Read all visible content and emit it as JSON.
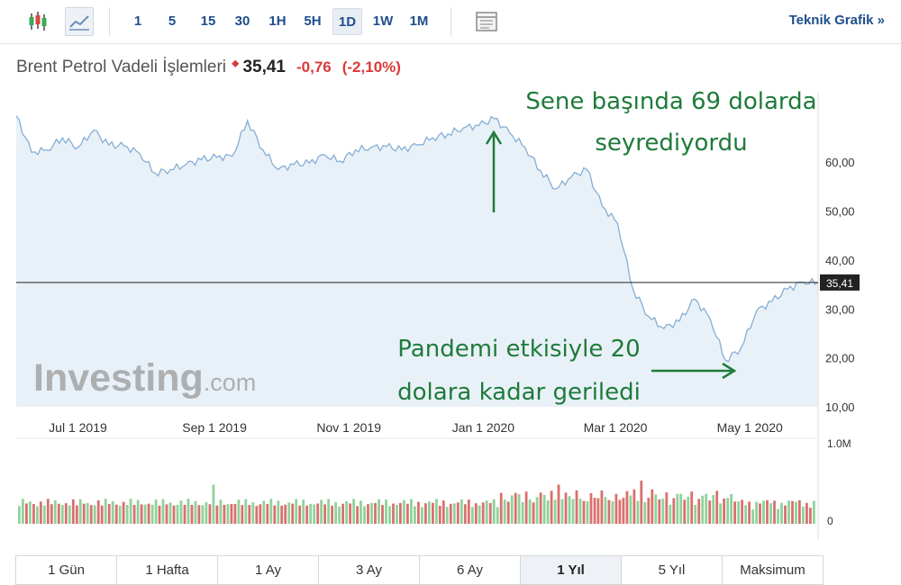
{
  "toolbar": {
    "candle_icon": "candlestick-icon",
    "line_icon": "line-chart-icon",
    "intervals": [
      {
        "label": "1"
      },
      {
        "label": "5"
      },
      {
        "label": "15"
      },
      {
        "label": "30"
      },
      {
        "label": "1H"
      },
      {
        "label": "5H"
      },
      {
        "label": "1D",
        "active": true
      },
      {
        "label": "1W"
      },
      {
        "label": "1M"
      }
    ],
    "layout_icon": "panel-layout-icon",
    "teknik_label": "Teknik Grafik »"
  },
  "quote": {
    "name": "Brent Petrol Vadeli İşlemleri",
    "arrow": "⬥",
    "price": "35,41",
    "change": "-0,76",
    "change_pct": "(-2,10%)"
  },
  "annotations": {
    "top_line1": "Sene başında 69 dolarda",
    "top_line2": "seyrediyordu",
    "bottom_line1": "Pandemi etkisiyle 20",
    "bottom_line2": "dolara kadar geriledi"
  },
  "watermark": {
    "bold": "Investing",
    "light": ".com"
  },
  "colors": {
    "line": "#86aed4",
    "area": "#e3edf6",
    "up": "#8fd29a",
    "down": "#d9706d",
    "annotation": "#1e7b3a",
    "accent": "#1f4e8c"
  },
  "chart_data": {
    "type": "area",
    "title": "",
    "price_series": {
      "name": "",
      "points": [
        [
          "2019-06-03",
          69.5
        ],
        [
          "2019-06-10",
          62.0
        ],
        [
          "2019-06-17",
          62.5
        ],
        [
          "2019-06-24",
          65.0
        ],
        [
          "2019-07-01",
          63.0
        ],
        [
          "2019-07-08",
          66.5
        ],
        [
          "2019-07-15",
          63.5
        ],
        [
          "2019-07-22",
          63.3
        ],
        [
          "2019-07-29",
          61.8
        ],
        [
          "2019-08-05",
          57.8
        ],
        [
          "2019-08-12",
          58.5
        ],
        [
          "2019-08-19",
          59.5
        ],
        [
          "2019-08-26",
          60.5
        ],
        [
          "2019-09-02",
          61.0
        ],
        [
          "2019-09-09",
          61.2
        ],
        [
          "2019-09-16",
          68.5
        ],
        [
          "2019-09-23",
          62.5
        ],
        [
          "2019-09-30",
          58.5
        ],
        [
          "2019-10-07",
          59.5
        ],
        [
          "2019-10-14",
          59.8
        ],
        [
          "2019-10-21",
          61.5
        ],
        [
          "2019-10-28",
          60.2
        ],
        [
          "2019-11-04",
          62.5
        ],
        [
          "2019-11-11",
          63.0
        ],
        [
          "2019-11-18",
          63.2
        ],
        [
          "2019-11-25",
          62.5
        ],
        [
          "2019-12-02",
          63.5
        ],
        [
          "2019-12-09",
          65.0
        ],
        [
          "2019-12-16",
          65.8
        ],
        [
          "2019-12-23",
          67.0
        ],
        [
          "2019-12-30",
          67.5
        ],
        [
          "2020-01-06",
          68.9
        ],
        [
          "2020-01-13",
          66.0
        ],
        [
          "2020-01-20",
          63.0
        ],
        [
          "2020-01-27",
          58.3
        ],
        [
          "2020-02-03",
          54.5
        ],
        [
          "2020-02-10",
          57.0
        ],
        [
          "2020-02-17",
          58.5
        ],
        [
          "2020-02-24",
          51.0
        ],
        [
          "2020-03-02",
          47.5
        ],
        [
          "2020-03-09",
          34.0
        ],
        [
          "2020-03-16",
          28.5
        ],
        [
          "2020-03-23",
          26.0
        ],
        [
          "2020-03-30",
          27.5
        ],
        [
          "2020-04-06",
          32.0
        ],
        [
          "2020-04-13",
          28.0
        ],
        [
          "2020-04-20",
          19.5
        ],
        [
          "2020-04-27",
          22.0
        ],
        [
          "2020-05-04",
          29.5
        ],
        [
          "2020-05-11",
          31.5
        ],
        [
          "2020-05-18",
          34.0
        ],
        [
          "2020-05-25",
          35.5
        ],
        [
          "2020-06-01",
          35.41
        ]
      ]
    },
    "volume_series": {
      "name": "",
      "unit": "contracts",
      "max": 1000000,
      "approximate": true
    },
    "x_axis": {
      "ticks": [
        "Jul 1 2019",
        "Sep 1 2019",
        "Nov 1 2019",
        "Jan 1 2020",
        "Mar 1 2020",
        "May 1 2020"
      ]
    },
    "y_axis": {
      "range": [
        10,
        72
      ],
      "ticks": [
        "60,00",
        "50,00",
        "40,00",
        "30,00",
        "20,00",
        "10,00"
      ],
      "tick_values": [
        60,
        50,
        40,
        30,
        20,
        10
      ],
      "position": "right"
    },
    "volume_axis": {
      "ticks": [
        "1.0M",
        "0"
      ]
    },
    "current_price_line": 35.41,
    "current_price_label": "35,41",
    "grid": false,
    "legend": "none"
  },
  "range_buttons": [
    {
      "label": "1 Gün"
    },
    {
      "label": "1 Hafta"
    },
    {
      "label": "1 Ay"
    },
    {
      "label": "3 Ay"
    },
    {
      "label": "6 Ay"
    },
    {
      "label": "1 Yıl",
      "active": true
    },
    {
      "label": "5 Yıl"
    },
    {
      "label": "Maksimum"
    }
  ]
}
